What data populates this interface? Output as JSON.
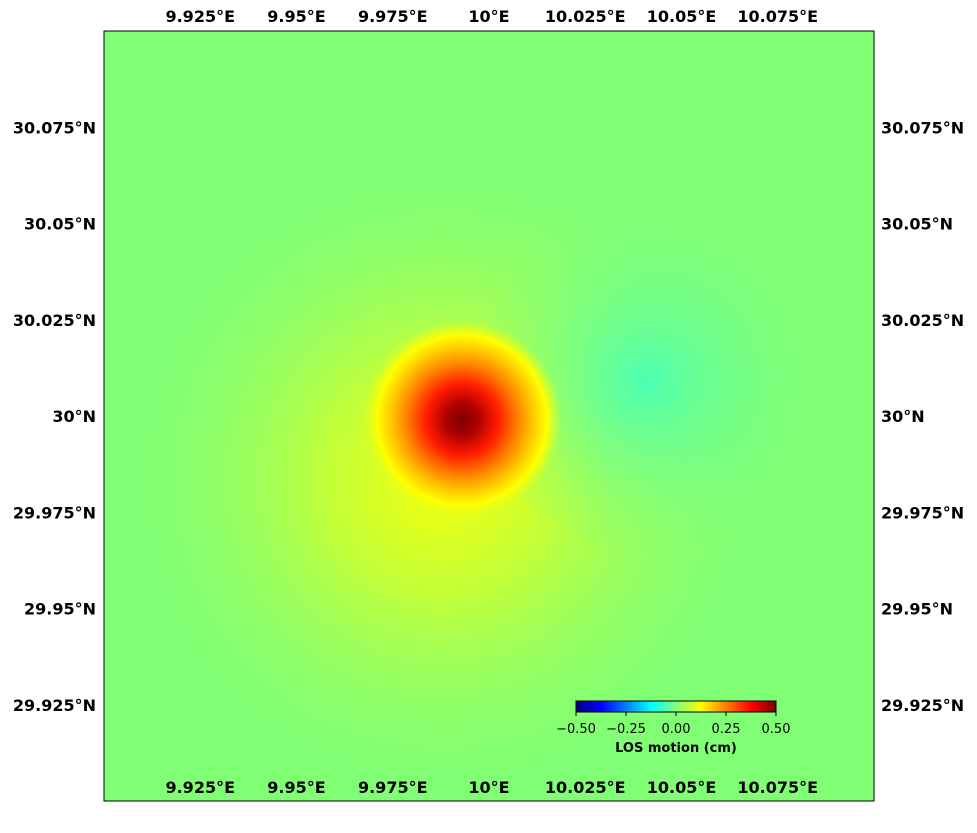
{
  "map": {
    "extent": {
      "lon_min": 9.9,
      "lon_max": 10.1,
      "lat_min": 29.9,
      "lat_max": 30.1
    },
    "background_color": "#80ff74",
    "lon_ticks": [
      {
        "value": 9.925,
        "label": "9.925°E"
      },
      {
        "value": 9.95,
        "label": "9.95°E"
      },
      {
        "value": 9.975,
        "label": "9.975°E"
      },
      {
        "value": 10.0,
        "label": "10°E"
      },
      {
        "value": 10.025,
        "label": "10.025°E"
      },
      {
        "value": 10.05,
        "label": "10.05°E"
      },
      {
        "value": 10.075,
        "label": "10.075°E"
      }
    ],
    "lat_ticks": [
      {
        "value": 30.075,
        "label": "30.075°N"
      },
      {
        "value": 30.05,
        "label": "30.05°N"
      },
      {
        "value": 30.025,
        "label": "30.025°N"
      },
      {
        "value": 30.0,
        "label": "30°N"
      },
      {
        "value": 29.975,
        "label": "29.975°N"
      },
      {
        "value": 29.95,
        "label": "29.95°N"
      },
      {
        "value": 29.925,
        "label": "29.925°N"
      }
    ],
    "deformation_field": [
      {
        "name": "uplift-lobe",
        "lon": 9.993,
        "lat": 29.999,
        "peak_los_cm": 0.5
      },
      {
        "name": "subsidence-lobe",
        "lon": 10.041,
        "lat": 30.009,
        "peak_los_cm": -0.05
      }
    ]
  },
  "colorbar": {
    "colormap": "jet",
    "colors": [
      "#00007f",
      "#0000ff",
      "#007fff",
      "#00ffff",
      "#7fff7f",
      "#ffff00",
      "#ff7f00",
      "#ff0000",
      "#7f0000"
    ],
    "range": [
      -0.5,
      0.5
    ],
    "ticks": [
      {
        "value": -0.5,
        "label": "−0.50"
      },
      {
        "value": -0.25,
        "label": "−0.25"
      },
      {
        "value": 0.0,
        "label": "0.00"
      },
      {
        "value": 0.25,
        "label": "0.25"
      },
      {
        "value": 0.5,
        "label": "0.50"
      }
    ],
    "label": "LOS motion (cm)"
  }
}
